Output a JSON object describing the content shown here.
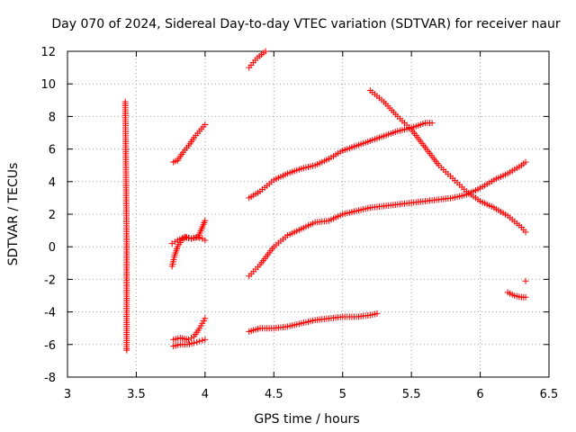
{
  "chart_data": {
    "type": "scatter",
    "title": "Day 070 of 2024, Sidereal Day-to-day VTEC variation (SDTVAR) for receiver naur",
    "xlabel": "GPS time / hours",
    "ylabel": "SDTVAR / TECUs",
    "xlim": [
      3,
      6.5
    ],
    "ylim": [
      -8,
      12
    ],
    "xticks": [
      "3",
      "3.5",
      "4",
      "4.5",
      "5",
      "5.5",
      "6",
      "6.5"
    ],
    "yticks": [
      "-8",
      "-6",
      "-4",
      "-2",
      "0",
      "2",
      "4",
      "6",
      "8",
      "10",
      "12"
    ],
    "grid": true,
    "marker": "+",
    "marker_color": "#ff0000",
    "series": [
      {
        "x": [
          3.42,
          3.43,
          3.43,
          3.43,
          3.43
        ],
        "y": [
          8.9,
          0.3,
          -3.65,
          -6.25,
          -6.35
        ]
      },
      {
        "x": [
          3.77,
          3.8,
          3.84,
          3.88,
          3.92,
          3.96,
          4.0
        ],
        "y": [
          5.2,
          5.3,
          5.8,
          6.2,
          6.7,
          7.1,
          7.5
        ]
      },
      {
        "x": [
          3.76,
          3.78,
          3.8,
          3.83,
          3.86,
          3.9,
          3.94,
          3.98,
          4.0
        ],
        "y": [
          -1.2,
          -0.5,
          0.0,
          0.4,
          0.6,
          0.5,
          0.6,
          0.5,
          0.4
        ]
      },
      {
        "x": [
          3.76,
          3.8,
          3.85,
          3.9,
          3.95,
          4.0
        ],
        "y": [
          0.2,
          0.4,
          0.6,
          0.5,
          0.6,
          1.6
        ]
      },
      {
        "x": [
          3.77,
          3.82,
          3.88,
          3.92,
          3.96,
          4.0
        ],
        "y": [
          -5.7,
          -5.6,
          -5.7,
          -5.5,
          -5.0,
          -4.4
        ]
      },
      {
        "x": [
          3.77,
          3.82,
          3.87,
          3.92,
          3.96,
          4.0
        ],
        "y": [
          -6.1,
          -6.0,
          -6.0,
          -5.9,
          -5.8,
          -5.7
        ]
      },
      {
        "x": [
          4.32,
          4.35,
          4.38,
          4.41,
          4.44
        ],
        "y": [
          11.0,
          11.3,
          11.6,
          11.8,
          12.0
        ]
      },
      {
        "x": [
          4.32,
          4.4,
          4.5,
          4.6,
          4.7,
          4.8,
          4.9,
          5.0,
          5.1,
          5.2,
          5.3,
          5.4,
          5.5,
          5.6,
          5.65
        ],
        "y": [
          3.0,
          3.4,
          4.1,
          4.5,
          4.8,
          5.0,
          5.4,
          5.9,
          6.2,
          6.5,
          6.8,
          7.1,
          7.3,
          7.6,
          7.6
        ]
      },
      {
        "x": [
          4.32,
          4.4,
          4.5,
          4.6,
          4.7,
          4.8,
          4.9,
          5.0,
          5.1,
          5.2,
          5.3,
          5.4,
          5.5,
          5.6,
          5.7,
          5.8,
          5.9,
          6.0,
          6.1,
          6.2,
          6.3,
          6.33
        ],
        "y": [
          -1.8,
          -1.1,
          0.0,
          0.7,
          1.1,
          1.5,
          1.6,
          2.0,
          2.2,
          2.4,
          2.5,
          2.6,
          2.7,
          2.8,
          2.9,
          3.0,
          3.2,
          3.6,
          4.1,
          4.5,
          5.0,
          5.2
        ]
      },
      {
        "x": [
          4.32,
          4.4,
          4.5,
          4.6,
          4.7,
          4.8,
          4.9,
          5.0,
          5.1,
          5.2,
          5.25
        ],
        "y": [
          -5.2,
          -5.0,
          -5.0,
          -4.9,
          -4.7,
          -4.5,
          -4.4,
          -4.3,
          -4.3,
          -4.2,
          -4.1
        ]
      },
      {
        "x": [
          5.2,
          5.3,
          5.4,
          5.5,
          5.6,
          5.7,
          5.8,
          5.9,
          6.0,
          6.1,
          6.2,
          6.3,
          6.33
        ],
        "y": [
          9.6,
          8.9,
          8.0,
          7.2,
          6.1,
          5.0,
          4.2,
          3.4,
          2.8,
          2.4,
          1.9,
          1.2,
          0.9
        ]
      },
      {
        "x": [
          6.2,
          6.25,
          6.3,
          6.33
        ],
        "y": [
          -2.8,
          -3.0,
          -3.1,
          -3.1
        ]
      },
      {
        "x": [
          6.33
        ],
        "y": [
          -2.1
        ]
      }
    ]
  }
}
